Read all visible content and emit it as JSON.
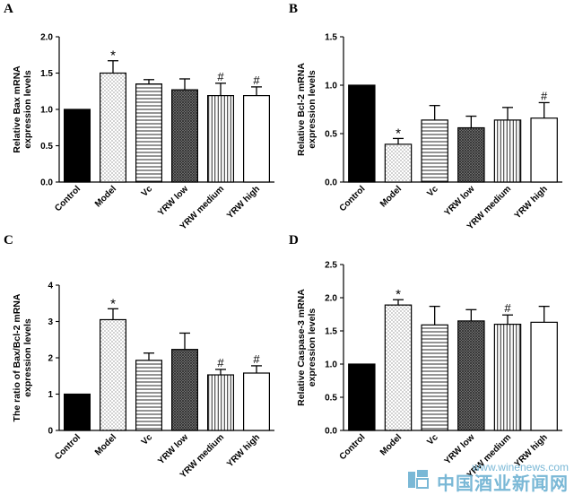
{
  "categories": [
    "Control",
    "Model",
    "Vc",
    "YRW low",
    "YRW medium",
    "YRW high"
  ],
  "patterns": [
    "solid",
    "dots",
    "hlines",
    "crosshatch",
    "vlines",
    "white"
  ],
  "colors": {
    "bar_fill": "#000000",
    "watermark": "#7ab8d6"
  },
  "chart_data": [
    {
      "panel": "A",
      "type": "bar",
      "ylabel_lines": [
        "Relative Bax mRNA",
        "expression levels"
      ],
      "ylim": [
        0,
        2.0
      ],
      "yticks": [
        "0.0",
        "0.5",
        "1.0",
        "1.5",
        "2.0"
      ],
      "categories": [
        "Control",
        "Model",
        "Vc",
        "YRW low",
        "YRW medium",
        "YRW high"
      ],
      "values": [
        1.0,
        1.5,
        1.35,
        1.27,
        1.19,
        1.19
      ],
      "errors": [
        0,
        0.17,
        0.06,
        0.15,
        0.17,
        0.12
      ],
      "marks": [
        "",
        "*",
        "",
        "",
        "#",
        "#"
      ]
    },
    {
      "panel": "B",
      "type": "bar",
      "ylabel_lines": [
        "Relative Bcl-2 mRNA",
        "expression levels"
      ],
      "ylim": [
        0,
        1.5
      ],
      "yticks": [
        "0.0",
        "0.5",
        "1.0",
        "1.5"
      ],
      "categories": [
        "Control",
        "Model",
        "Vc",
        "YRW low",
        "YRW medium",
        "YRW high"
      ],
      "values": [
        1.0,
        0.39,
        0.64,
        0.56,
        0.64,
        0.66
      ],
      "errors": [
        0,
        0.06,
        0.15,
        0.12,
        0.13,
        0.16
      ],
      "marks": [
        "",
        "*",
        "",
        "",
        "",
        "#"
      ]
    },
    {
      "panel": "C",
      "type": "bar",
      "ylabel_lines": [
        "The ratio of Bax/Bcl-2 mRNA",
        "expression levels"
      ],
      "ylim": [
        0,
        4
      ],
      "yticks": [
        "0",
        "1",
        "2",
        "3",
        "4"
      ],
      "categories": [
        "Control",
        "Model",
        "Vc",
        "YRW low",
        "YRW medium",
        "YRW high"
      ],
      "values": [
        1.0,
        3.05,
        1.93,
        2.23,
        1.53,
        1.58
      ],
      "errors": [
        0,
        0.3,
        0.2,
        0.45,
        0.15,
        0.2
      ],
      "marks": [
        "",
        "*",
        "",
        "",
        "#",
        "#"
      ]
    },
    {
      "panel": "D",
      "type": "bar",
      "ylabel_lines": [
        "Relative Caspase-3 mRNA",
        "expression levels"
      ],
      "ylim": [
        0,
        2.5
      ],
      "yticks": [
        "0.0",
        "0.5",
        "1.0",
        "1.5",
        "2.0",
        "2.5"
      ],
      "categories": [
        "Control",
        "Model",
        "Vc",
        "YRW low",
        "YRW medium",
        "YRW high"
      ],
      "values": [
        1.0,
        1.89,
        1.59,
        1.65,
        1.6,
        1.63
      ],
      "errors": [
        0,
        0.08,
        0.28,
        0.17,
        0.14,
        0.24
      ],
      "marks": [
        "",
        "*",
        "",
        "",
        "#",
        ""
      ]
    }
  ],
  "watermark": {
    "url": "www.winenews.com",
    "text_cn": "中国酒业新闻网"
  }
}
